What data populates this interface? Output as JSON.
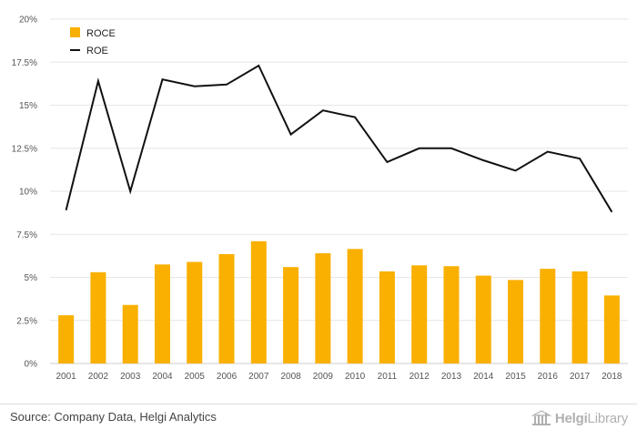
{
  "chart_data": {
    "type": "bar",
    "categories": [
      "2001",
      "2002",
      "2003",
      "2004",
      "2005",
      "2006",
      "2007",
      "2008",
      "2009",
      "2010",
      "2011",
      "2012",
      "2013",
      "2014",
      "2015",
      "2016",
      "2017",
      "2018"
    ],
    "series": [
      {
        "name": "ROCE",
        "type": "bar",
        "color": "#F9B000",
        "values": [
          2.8,
          5.3,
          3.4,
          5.75,
          5.9,
          6.35,
          7.1,
          5.6,
          6.4,
          6.65,
          5.35,
          5.7,
          5.65,
          5.1,
          4.85,
          5.5,
          5.35,
          3.95
        ]
      },
      {
        "name": "ROE",
        "type": "line",
        "color": "#111111",
        "values": [
          8.9,
          16.4,
          10.0,
          16.5,
          16.1,
          16.2,
          17.3,
          13.3,
          14.7,
          14.3,
          11.7,
          12.5,
          12.5,
          11.8,
          11.2,
          12.3,
          11.9,
          8.8
        ]
      }
    ],
    "yticks": [
      "0%",
      "2.5%",
      "5%",
      "7.5%",
      "10%",
      "12.5%",
      "15%",
      "17.5%",
      "20%"
    ],
    "ylim": [
      0,
      20
    ],
    "grid": true,
    "legend_position": "top-left"
  },
  "footer": {
    "source": "Source: Company Data, Helgi Analytics",
    "brand_prefix": "Helgi",
    "brand_suffix": "Library"
  }
}
